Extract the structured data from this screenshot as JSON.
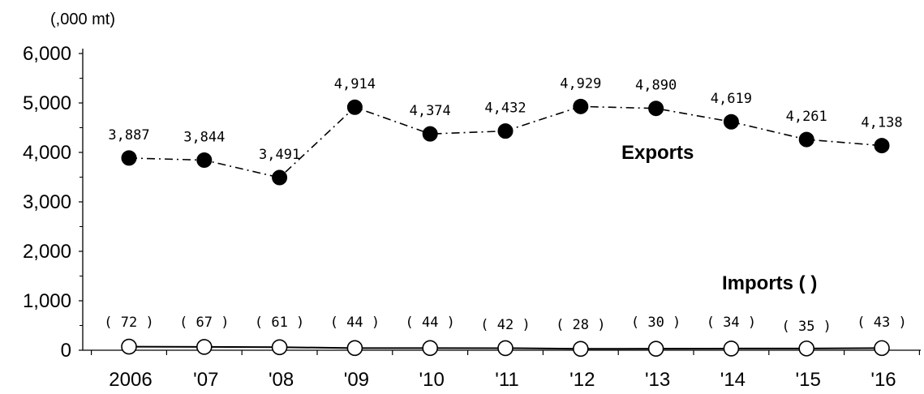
{
  "chart_data": {
    "type": "line",
    "unit_label": "(,000 mt)",
    "categories": [
      "2006",
      "'07",
      "'08",
      "'09",
      "'10",
      "'11",
      "'12",
      "'13",
      "'14",
      "'15",
      "'16"
    ],
    "ylim": [
      0,
      6000
    ],
    "yticks": [
      {
        "value": 0,
        "label": "0"
      },
      {
        "value": 1000,
        "label": "1,000"
      },
      {
        "value": 2000,
        "label": "2,000"
      },
      {
        "value": 3000,
        "label": "3,000"
      },
      {
        "value": 4000,
        "label": "4,000"
      },
      {
        "value": 5000,
        "label": "5,000"
      },
      {
        "value": 6000,
        "label": "6,000"
      }
    ],
    "grid": false,
    "series": [
      {
        "name": "Exports",
        "values": [
          3887,
          3844,
          3491,
          4914,
          4374,
          4432,
          4929,
          4890,
          4619,
          4261,
          4138
        ],
        "labels": [
          "3,887",
          "3,844",
          "3,491",
          "4,914",
          "4,374",
          "4,432",
          "4,929",
          "4,890",
          "4,619",
          "4,261",
          "4,138"
        ],
        "line_style": "dash-dot",
        "marker": "filled-circle",
        "color": "#000000"
      },
      {
        "name": "Imports ( )",
        "values": [
          72,
          67,
          61,
          44,
          44,
          42,
          28,
          30,
          34,
          35,
          43
        ],
        "labels": [
          "( 72 )",
          "( 67 )",
          "( 61 )",
          "( 44 )",
          "( 44 )",
          "( 42 )",
          "( 28 )",
          "( 30 )",
          "( 34 )",
          "( 35 )",
          "( 43 )"
        ],
        "line_style": "solid",
        "marker": "open-circle",
        "color": "#000000"
      }
    ]
  }
}
